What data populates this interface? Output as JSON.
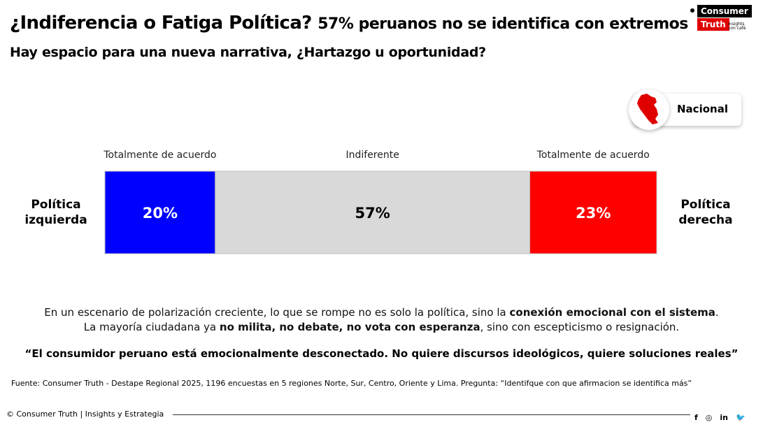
{
  "header": {
    "title_main": "¿Indiferencia o Fatiga Política?",
    "title_sub": "57% peruanos no se identifica con extremos",
    "subtitle": "Hay espacio para una nueva narrativa, ¿Hartazgo u oportunidad?"
  },
  "logo": {
    "line1": "Consumer",
    "line2": "Truth",
    "tagline": "Insights con café"
  },
  "scope": {
    "label": "Nacional"
  },
  "chart_data": {
    "type": "bar",
    "orientation": "horizontal-stacked",
    "unit": "%",
    "categories": [
      "Totalmente de acuerdo",
      "Indiferente",
      "Totalmente de acuerdo"
    ],
    "values": [
      20,
      57,
      23
    ],
    "value_labels": [
      "20%",
      "57%",
      "23%"
    ],
    "colors": [
      "#0000ff",
      "#d9d9d9",
      "#ff0000"
    ],
    "label_colors": [
      "#ffffff",
      "#000000",
      "#ffffff"
    ],
    "left_label": [
      "Política",
      "izquierda"
    ],
    "right_label": [
      "Política",
      "derecha"
    ]
  },
  "body": {
    "line1_pre": "En un escenario de polarización creciente, lo que se rompe no es solo la política, sino la ",
    "line1_bold": "conexión emocional con el sistema",
    "line1_post": ".",
    "line2_pre": "La mayoría ciudadana ya ",
    "line2_bold": "no milita, no debate, no vota con esperanza",
    "line2_post": ", sino con escepticismo o resignación.",
    "quote": "“El consumidor peruano está emocionalmente desconectado. No quiere discursos ideológicos, quiere soluciones reales”"
  },
  "source": "Fuente: Consumer Truth - Destape Regional 2025, 1196 encuestas en 5 regiones Norte, Sur, Centro, Oriente y Lima. Pregunta: “Identifque con que afirmacion se identifica más”",
  "footer": {
    "copyright": "© Consumer Truth | Insights y Estrategia",
    "social": [
      {
        "name": "facebook-icon",
        "glyph": "f"
      },
      {
        "name": "instagram-icon",
        "glyph": "◎"
      },
      {
        "name": "linkedin-icon",
        "glyph": "in"
      },
      {
        "name": "twitter-icon",
        "glyph": "🐦"
      }
    ]
  }
}
